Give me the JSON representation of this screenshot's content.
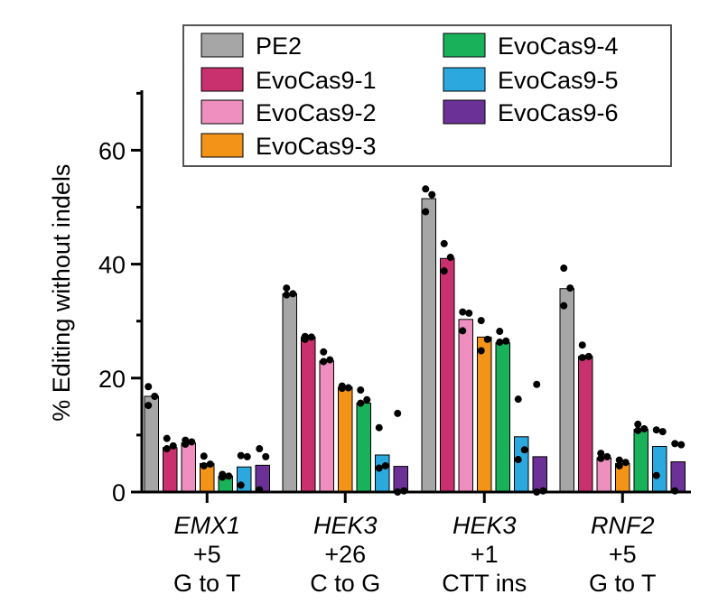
{
  "chart_data": {
    "type": "bar",
    "title": "",
    "xlabel": "",
    "ylabel": "% Editing without indels",
    "ylim": [
      0,
      70
    ],
    "yticks": [
      0,
      20,
      40,
      60
    ],
    "categories": [
      {
        "gene": "EMX1",
        "position": "+5",
        "edit": "G to T"
      },
      {
        "gene": "HEK3",
        "position": "+26",
        "edit": "C to G"
      },
      {
        "gene": "HEK3",
        "position": "+1",
        "edit": "CTT ins"
      },
      {
        "gene": "RNF2",
        "position": "+5",
        "edit": "G to T"
      }
    ],
    "series": [
      {
        "name": "PE2",
        "color": "#a6a6a6",
        "values": [
          16.8,
          34.8,
          51.5,
          35.7
        ],
        "points": [
          [
            18.5,
            16.8,
            15.2
          ],
          [
            35.8,
            34.8,
            34.6
          ],
          [
            53.2,
            52.2,
            49.2
          ],
          [
            39.3,
            35.8,
            32.7
          ]
        ]
      },
      {
        "name": "EvoCas9-1",
        "color": "#c9306e",
        "values": [
          7.8,
          27.2,
          41.0,
          23.8
        ],
        "points": [
          [
            9.4,
            8.1,
            7.6
          ],
          [
            27.3,
            27.2,
            26.8
          ],
          [
            43.6,
            41.2,
            38.8
          ],
          [
            25.8,
            23.8,
            23.6
          ]
        ]
      },
      {
        "name": "EvoCas9-2",
        "color": "#ef8fc0",
        "values": [
          8.6,
          23.0,
          30.3,
          6.0
        ],
        "points": [
          [
            9.1,
            8.8,
            8.4
          ],
          [
            24.6,
            23.2,
            22.9
          ],
          [
            31.6,
            31.4,
            28.3
          ],
          [
            6.8,
            6.2,
            5.9
          ]
        ]
      },
      {
        "name": "EvoCas9-3",
        "color": "#f39318",
        "values": [
          5.0,
          18.4,
          27.2,
          5.0
        ],
        "points": [
          [
            6.3,
            4.9,
            4.6
          ],
          [
            18.6,
            18.3,
            18.2
          ],
          [
            30.1,
            26.8,
            24.8
          ],
          [
            5.6,
            5.2,
            4.6
          ]
        ]
      },
      {
        "name": "EvoCas9-4",
        "color": "#19b25a",
        "values": [
          2.8,
          15.6,
          26.2,
          11.0
        ],
        "points": [
          [
            3.1,
            2.8,
            2.6
          ],
          [
            17.9,
            16.2,
            15.6
          ],
          [
            28.2,
            26.5,
            26.3
          ],
          [
            11.9,
            11.1,
            10.8
          ]
        ]
      },
      {
        "name": "EvoCas9-5",
        "color": "#2ba9df",
        "values": [
          4.4,
          6.5,
          9.7,
          8.0
        ],
        "points": [
          [
            6.4,
            6.2,
            1.2
          ],
          [
            11.3,
            4.6,
            4.2
          ],
          [
            16.3,
            7.4,
            5.7
          ],
          [
            10.9,
            10.6,
            2.9
          ]
        ]
      },
      {
        "name": "EvoCas9-6",
        "color": "#6c3197",
        "values": [
          4.7,
          4.5,
          6.2,
          5.3
        ],
        "points": [
          [
            7.6,
            6.2,
            0.4
          ],
          [
            13.8,
            0.2,
            0.0
          ],
          [
            18.9,
            0.2,
            0.0
          ],
          [
            8.5,
            8.3,
            0.2
          ]
        ]
      }
    ],
    "legend": {
      "placement": "top-right",
      "columns": 2
    }
  }
}
